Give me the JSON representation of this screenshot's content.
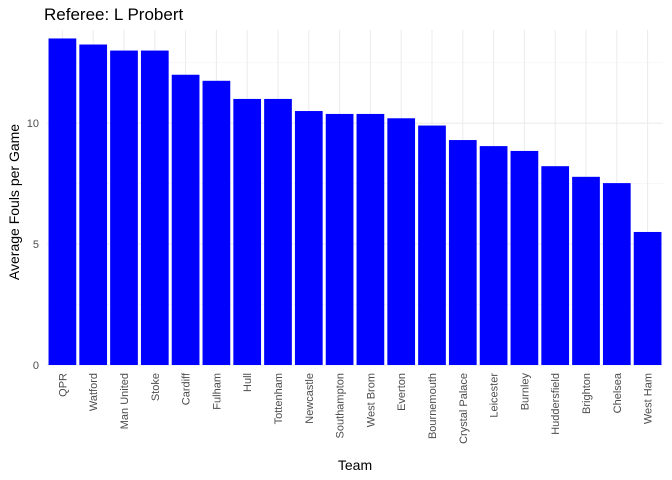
{
  "chart_data": {
    "type": "bar",
    "title": "Referee: L Probert",
    "xlabel": "Team",
    "ylabel": "Average Fouls per Game",
    "categories": [
      "QPR",
      "Watford",
      "Man United",
      "Stoke",
      "Cardiff",
      "Fulham",
      "Hull",
      "Tottenham",
      "Newcastle",
      "Southampton",
      "West Brom",
      "Everton",
      "Bournemouth",
      "Crystal Palace",
      "Leicester",
      "Burnley",
      "Huddersfield",
      "Brighton",
      "Chelsea",
      "West Ham"
    ],
    "values": [
      13.5,
      13.25,
      13.0,
      13.0,
      12.0,
      11.75,
      11.0,
      11.0,
      10.5,
      10.38,
      10.38,
      10.2,
      9.9,
      9.3,
      9.05,
      8.85,
      8.22,
      7.78,
      7.52,
      5.5
    ],
    "ylim": [
      0,
      13.85
    ],
    "yticks": [
      0,
      5,
      10
    ],
    "grid": true,
    "bar_color": "#0000FF"
  }
}
